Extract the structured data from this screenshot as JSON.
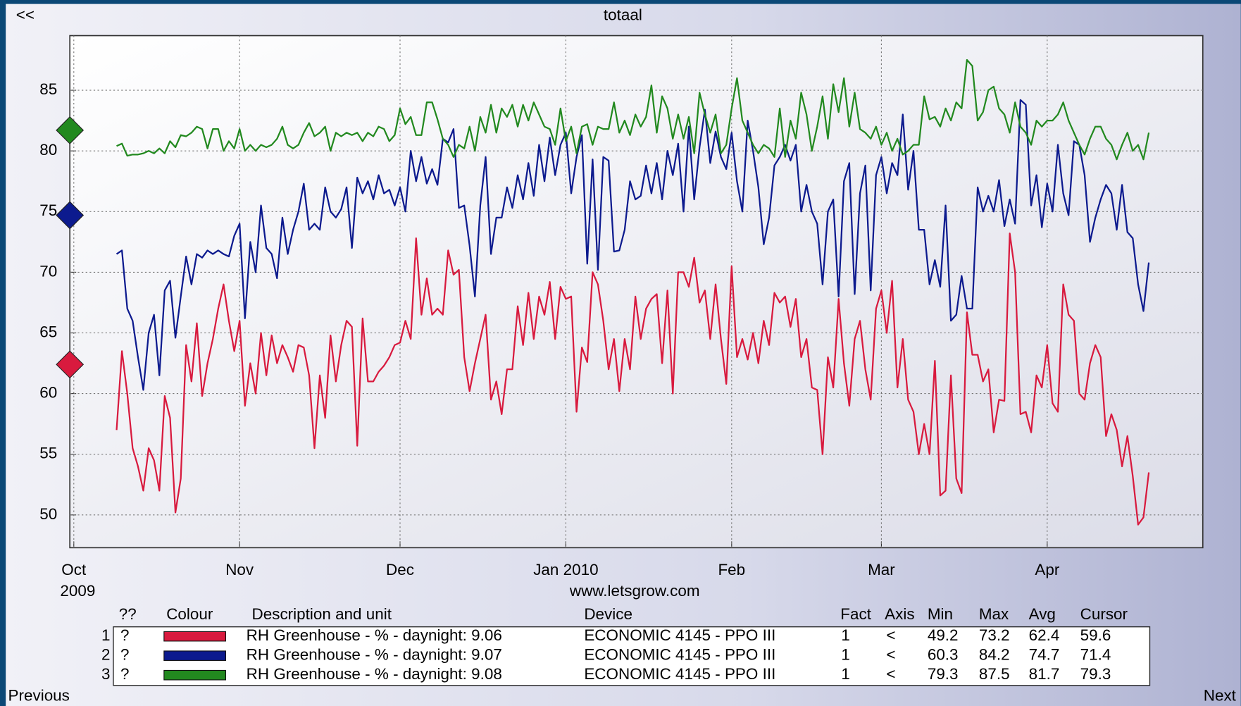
{
  "nav": {
    "back": "<<",
    "previous": "Previous",
    "next": "Next"
  },
  "footer": "www.letsgrow.com",
  "chart_data": {
    "type": "line",
    "title": "totaal",
    "x_year_label": "2009",
    "categories": [
      "Oct",
      null,
      null,
      null,
      null,
      null,
      null,
      null,
      null,
      null,
      null,
      null,
      null,
      null,
      null,
      null,
      null,
      null,
      null,
      null,
      null,
      null,
      null,
      null,
      null,
      null,
      null,
      null,
      null,
      null,
      null,
      "Nov",
      null,
      null,
      null,
      null,
      null,
      null,
      null,
      null,
      null,
      null,
      null,
      null,
      null,
      null,
      null,
      null,
      null,
      null,
      null,
      null,
      null,
      null,
      null,
      null,
      null,
      null,
      null,
      null,
      null,
      "Dec",
      null,
      null,
      null,
      null,
      null,
      null,
      null,
      null,
      null,
      null,
      null,
      null,
      null,
      null,
      null,
      null,
      null,
      null,
      null,
      null,
      null,
      null,
      null,
      null,
      null,
      null,
      null,
      null,
      null,
      null,
      "Jan 2010",
      null,
      null,
      null,
      null,
      null,
      null,
      null,
      null,
      null,
      null,
      null,
      null,
      null,
      null,
      null,
      null,
      null,
      null,
      null,
      null,
      null,
      null,
      null,
      null,
      null,
      null,
      null,
      null,
      null,
      null,
      "Feb",
      null,
      null,
      null,
      null,
      null,
      null,
      null,
      null,
      null,
      null,
      null,
      null,
      null,
      null,
      null,
      null,
      null,
      null,
      null,
      null,
      null,
      null,
      null,
      null,
      null,
      null,
      null,
      "Mar",
      null,
      null,
      null,
      null,
      null,
      null,
      null,
      null,
      null,
      null,
      null,
      null,
      null,
      null,
      null,
      null,
      null,
      null,
      null,
      null,
      null,
      null,
      null,
      null,
      null,
      null,
      null,
      null,
      null,
      null,
      "Apr",
      null,
      null,
      null,
      null,
      null,
      null,
      null,
      null,
      null,
      null,
      null,
      null,
      null,
      null,
      null,
      null,
      null,
      null,
      null,
      null,
      null,
      null,
      null,
      null,
      null,
      null,
      null,
      null
    ],
    "ylim": [
      47.3,
      89.5
    ],
    "yticks": [
      50,
      55,
      60,
      65,
      70,
      75,
      80,
      85
    ],
    "grid": true,
    "series": [
      {
        "name": "RH Greenhouse - % - daynight: 9.06",
        "color": "#d81a3e",
        "values": [
          null,
          null,
          null,
          null,
          null,
          null,
          null,
          null,
          57,
          63.5,
          60,
          55.5,
          54,
          52,
          55.5,
          54.5,
          52,
          59.8,
          58,
          50.2,
          53,
          64,
          61,
          65.8,
          59.8,
          62.5,
          64.5,
          67,
          69,
          66,
          63.5,
          66,
          59,
          62.5,
          60,
          65,
          61.5,
          64.8,
          62.5,
          64,
          63,
          61.8,
          64,
          63.8,
          61.5,
          55.5,
          61.5,
          58,
          64.8,
          61,
          64,
          66,
          65.5,
          55.7,
          66.2,
          61,
          61,
          61.8,
          62.3,
          63,
          64,
          64.2,
          66,
          64.5,
          72.8,
          66.5,
          69.5,
          66.5,
          67,
          66.5,
          71.8,
          69.8,
          70.2,
          63,
          60.2,
          62.5,
          64.5,
          66.5,
          59.5,
          61,
          58.3,
          62,
          62,
          67.2,
          64,
          68.3,
          64.5,
          68,
          66.5,
          69.2,
          64.5,
          68.8,
          67.8,
          68,
          58.5,
          63.8,
          62.6,
          70,
          69,
          66,
          62,
          64.5,
          60.2,
          64.5,
          62,
          68,
          64.5,
          67,
          67.8,
          68.2,
          62.5,
          68.5,
          60,
          70,
          70,
          68.8,
          71.2,
          67.5,
          68.5,
          64.5,
          69,
          64.5,
          60.8,
          70.5,
          63,
          64.5,
          62.8,
          65,
          62.5,
          66,
          64,
          68.3,
          67.5,
          68,
          65.5,
          67.8,
          63,
          64.5,
          60.5,
          60.3,
          55,
          63,
          60.5,
          67.8,
          62.5,
          59,
          64.5,
          66,
          62,
          59.5,
          67,
          68.5,
          65,
          69.3,
          60.5,
          64.5,
          59.5,
          58.5,
          55,
          57.5,
          55,
          62.7,
          51.6,
          52,
          61.5,
          53,
          51.8,
          66.7,
          63.2,
          63.2,
          61,
          62,
          56.8,
          59.5,
          59.4,
          73.2,
          70,
          58.3,
          58.5,
          56.8,
          61.5,
          60.5,
          64,
          59.2,
          58.5,
          69,
          66.5,
          66,
          60,
          59.5,
          62.5,
          64,
          63,
          56.5,
          58.3,
          57,
          54,
          56.5,
          53.2,
          49.2,
          49.8,
          53.5,
          null,
          null,
          null,
          null,
          null,
          null,
          null,
          null,
          null
        ]
      },
      {
        "name": "RH Greenhouse - % - daynight: 9.07",
        "color": "#0c1a8e",
        "values": [
          null,
          null,
          null,
          null,
          null,
          null,
          null,
          null,
          71.5,
          71.8,
          67,
          66,
          63,
          60.3,
          65,
          66.5,
          61.5,
          68.5,
          69.3,
          64.6,
          68,
          71.3,
          69,
          71.5,
          71.2,
          71.8,
          71.5,
          71.8,
          71.5,
          71.3,
          73,
          74,
          66.2,
          72.5,
          70,
          75.5,
          72,
          71.5,
          69.5,
          74.5,
          71.5,
          73.5,
          75,
          77.3,
          73.5,
          74,
          73.5,
          77,
          75,
          74.5,
          75.2,
          77,
          72,
          77.8,
          76.5,
          77.5,
          76,
          78,
          76.5,
          76.8,
          75.5,
          77,
          75,
          80,
          77.5,
          79.5,
          77.3,
          78.5,
          77.2,
          81,
          80.7,
          81.8,
          75.3,
          75.5,
          72.2,
          68,
          75.5,
          79.5,
          71.5,
          74.5,
          74.5,
          77,
          75.3,
          78,
          76,
          79,
          76.3,
          80.5,
          77.5,
          81.1,
          78,
          80.5,
          81.5,
          76.5,
          79.5,
          81.3,
          70.7,
          79.3,
          70.2,
          79.5,
          79.2,
          71.7,
          71.8,
          73.5,
          77.5,
          76,
          76.3,
          78.8,
          76.5,
          79,
          76,
          80,
          78,
          80.6,
          75,
          82,
          76,
          80.3,
          83.4,
          79,
          81.6,
          79.5,
          78.5,
          81.5,
          77.5,
          75,
          82.5,
          80,
          77,
          72.3,
          74.5,
          78.8,
          79.5,
          80.5,
          79.2,
          80.5,
          75,
          77.2,
          75,
          74,
          69,
          75,
          76,
          68,
          77.5,
          79,
          68.2,
          76.5,
          78.8,
          68.5,
          78,
          79.5,
          76.5,
          79,
          78,
          83,
          76.8,
          80,
          73.5,
          73.5,
          69,
          71,
          68.8,
          75.5,
          66,
          66.5,
          69.7,
          67,
          67,
          77,
          75,
          76.3,
          75,
          77.6,
          73.8,
          76,
          74,
          84.2,
          83.8,
          75.5,
          78,
          73.7,
          77.3,
          75,
          80.5,
          76.5,
          74.7,
          80.8,
          80.5,
          78,
          72.5,
          74.5,
          76,
          77.2,
          76.5,
          73.5,
          77.2,
          73.3,
          72.8,
          69,
          66.8,
          70.8,
          null,
          null,
          null,
          null,
          null,
          null,
          null,
          null,
          null
        ]
      },
      {
        "name": "RH Greenhouse - % - daynight: 9.08",
        "color": "#22891f",
        "values": [
          null,
          null,
          null,
          null,
          null,
          null,
          null,
          null,
          80.4,
          80.6,
          79.6,
          79.7,
          79.7,
          79.8,
          80,
          79.8,
          80.2,
          79.8,
          80.8,
          80.3,
          81.3,
          81.2,
          81.5,
          82,
          81.8,
          80.2,
          81.8,
          81.8,
          80,
          80.8,
          80.2,
          81.8,
          80,
          80.5,
          80,
          80.5,
          80.3,
          80.5,
          81,
          82,
          80.5,
          80.2,
          80.5,
          81.5,
          82.3,
          81.2,
          81.5,
          82,
          80,
          81.5,
          81.2,
          81.5,
          81.3,
          81.5,
          80.8,
          81.5,
          81.2,
          82,
          81.8,
          80.8,
          81.3,
          83.5,
          82.2,
          82.8,
          81.3,
          81.3,
          84,
          84,
          82.6,
          81,
          80.5,
          79.5,
          80.5,
          80.2,
          82,
          80,
          82.8,
          81.5,
          83.8,
          81.5,
          83.5,
          82.8,
          83.8,
          82,
          83.8,
          82.5,
          84,
          83,
          82,
          81.8,
          80.5,
          83.5,
          80.8,
          82,
          79.8,
          82,
          82.2,
          80.5,
          82,
          81.8,
          81.8,
          84,
          81.5,
          82.5,
          81.3,
          83,
          82,
          82.8,
          85.4,
          81.5,
          84.5,
          83.5,
          81,
          83,
          81,
          82.8,
          79.8,
          84.8,
          83,
          81.5,
          83,
          79.8,
          80.5,
          83.5,
          86,
          82.5,
          81.5,
          80.5,
          79.8,
          80.5,
          80.2,
          79.5,
          83.5,
          79.5,
          82.5,
          81,
          84.8,
          83,
          80,
          82,
          84.5,
          81,
          85.5,
          83.2,
          86,
          82,
          84.8,
          81.8,
          81.5,
          81,
          82,
          80.5,
          81.5,
          80,
          81,
          79.7,
          80,
          80.5,
          80.5,
          84.5,
          82.6,
          82.8,
          82,
          83.5,
          82.5,
          84,
          83.5,
          87.5,
          87,
          82.5,
          83.2,
          85,
          85.3,
          83.5,
          83,
          81.5,
          84,
          82,
          81.5,
          80.5,
          82.5,
          82,
          82.5,
          82.5,
          83,
          84,
          82.5,
          81.5,
          80.5,
          79.7,
          81,
          82,
          82,
          81,
          80.5,
          79.3,
          80.5,
          81.5,
          80,
          80.5,
          79.3,
          81.5,
          null,
          null,
          null,
          null,
          null,
          null,
          null,
          null,
          null
        ]
      }
    ]
  },
  "legend_table": {
    "header": [
      "??",
      "Colour",
      "Description and unit",
      "Device",
      "Fact",
      "Axis",
      "Min",
      "Max",
      "Avg",
      "Cursor"
    ],
    "rows": [
      {
        "index": "1",
        "flag": "?",
        "device": "ECONOMIC 4145 - PPO III",
        "fact": "1",
        "axis": "<",
        "min": 49.2,
        "max": 73.2,
        "avg": 62.4,
        "cursor": 59.6
      },
      {
        "index": "2",
        "flag": "?",
        "device": "ECONOMIC 4145 - PPO III",
        "fact": "1",
        "axis": "<",
        "min": 60.3,
        "max": 84.2,
        "avg": 74.7,
        "cursor": 71.4
      },
      {
        "index": "3",
        "flag": "?",
        "device": "ECONOMIC 4145 - PPO III",
        "fact": "1",
        "axis": "<",
        "min": 79.3,
        "max": 87.5,
        "avg": 81.7,
        "cursor": 79.3
      }
    ]
  }
}
